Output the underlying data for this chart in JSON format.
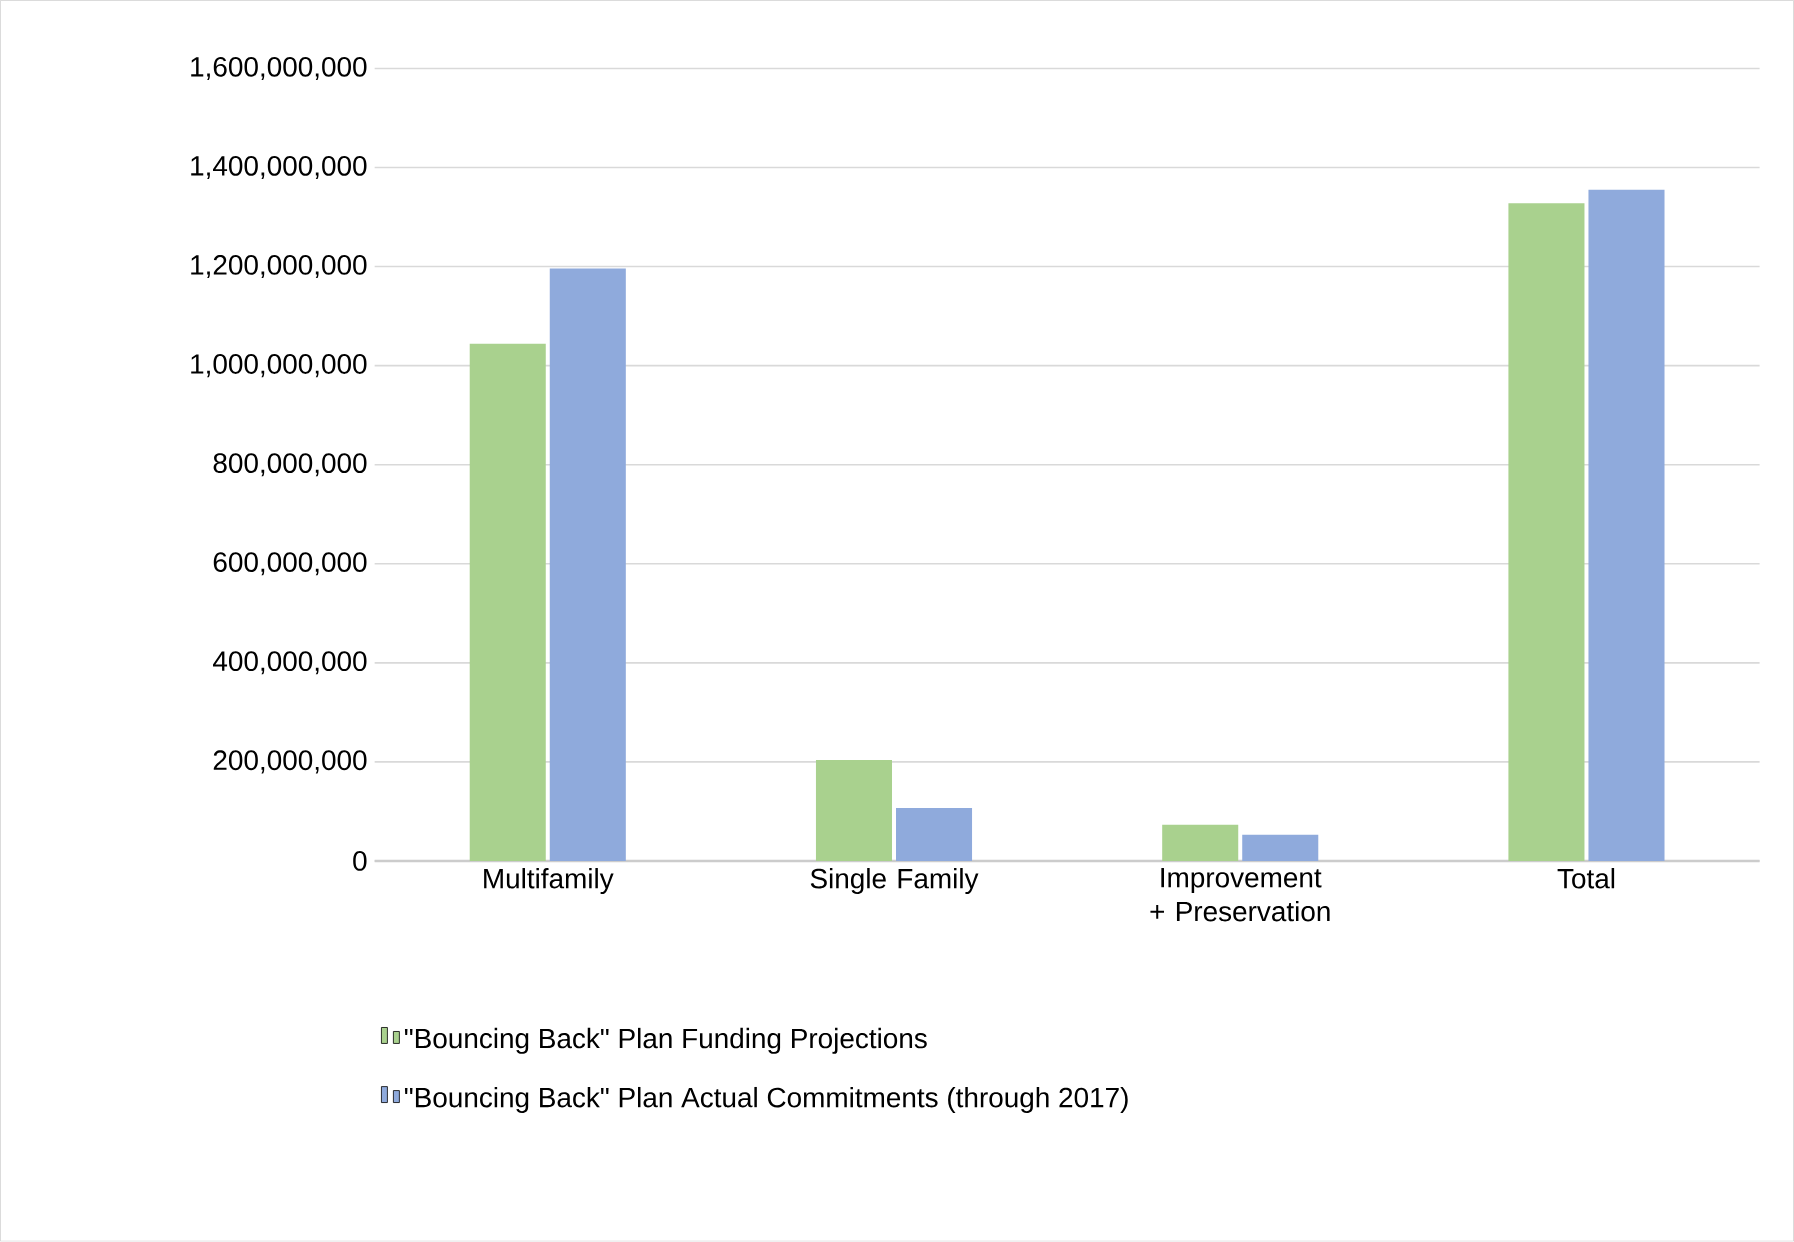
{
  "chart_data": {
    "type": "bar",
    "categories": [
      "Multifamily",
      "Single Family",
      "Improvement + Preservation",
      "Total"
    ],
    "series": [
      {
        "name": "\"Bouncing Back\" Plan Funding Projections",
        "color": "#a9d18e",
        "values": [
          1044000000,
          204000000,
          73000000,
          1328000000
        ]
      },
      {
        "name": "\"Bouncing Back\" Plan Actual Commitments (through 2017)",
        "color": "#8faadc",
        "values": [
          1196000000,
          107000000,
          53000000,
          1355000000
        ]
      }
    ],
    "ylim": [
      0,
      1600000000
    ],
    "yticks": [
      {
        "value": 0,
        "label": "0"
      },
      {
        "value": 200000000,
        "label": "200,000,000"
      },
      {
        "value": 400000000,
        "label": "400,000,000"
      },
      {
        "value": 600000000,
        "label": "600,000,000"
      },
      {
        "value": 800000000,
        "label": "800,000,000"
      },
      {
        "value": 1000000000,
        "label": "1,000,000,000"
      },
      {
        "value": 1200000000,
        "label": "1,200,000,000"
      },
      {
        "value": 1400000000,
        "label": "1,400,000,000"
      },
      {
        "value": 1600000000,
        "label": "1,600,000,000"
      }
    ],
    "grid": "y",
    "legend": "bottom"
  }
}
